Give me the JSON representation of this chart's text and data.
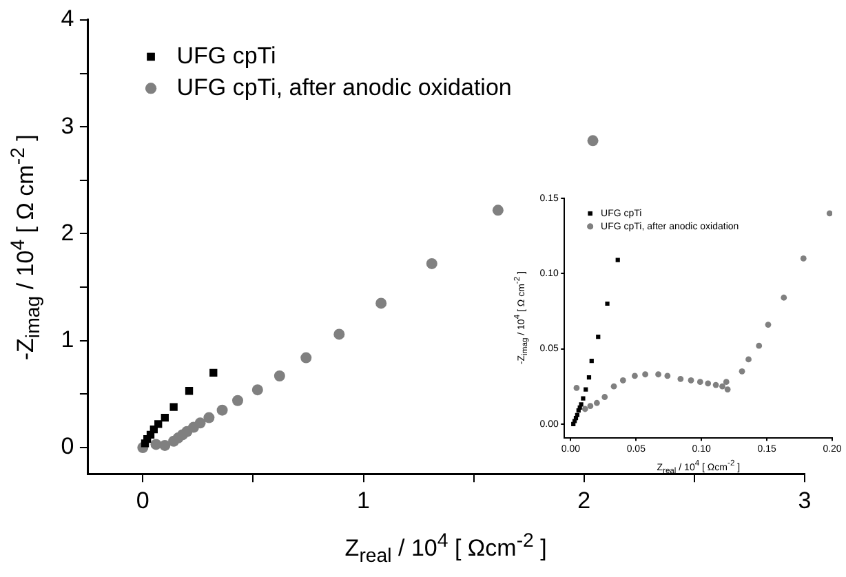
{
  "chart_data": [
    {
      "type": "scatter",
      "xlabel": "Z$_{real}$ / 10$^{4}$ [ Ωcm$^{-2}$ ]",
      "ylabel": "-Z$_{imag}$ / 10$^{4}$ [ Ω cm$^{-2}$ ]",
      "xlim": [
        -0.25,
        3
      ],
      "ylim": [
        -0.25,
        4
      ],
      "xticks": [
        0,
        {
          "value": 0.5,
          "label": null
        },
        1,
        {
          "value": 1.5,
          "label": null
        },
        2,
        {
          "value": 2.5,
          "label": null
        },
        3
      ],
      "yticks": [
        0,
        {
          "value": 0.5,
          "label": null
        },
        1,
        {
          "value": 1.5,
          "label": null
        },
        2,
        {
          "value": 2.5,
          "label": null
        },
        3,
        {
          "value": 3.5,
          "label": null
        },
        4
      ],
      "grid": false,
      "legend": "top left",
      "series": [
        {
          "name": "UFG cpTi",
          "color": "#000000",
          "marker": "square",
          "x": [
            0.32,
            0.21,
            0.14,
            0.1,
            0.07,
            0.05,
            0.035,
            0.02,
            0.01
          ],
          "values": [
            0.7,
            0.53,
            0.38,
            0.28,
            0.22,
            0.17,
            0.12,
            0.08,
            0.04
          ]
        },
        {
          "name": "UFG cpTi, after anodic oxidation",
          "color": "#808080",
          "marker": "circle",
          "x": [
            2.04,
            1.61,
            1.31,
            1.08,
            0.89,
            0.74,
            0.62,
            0.52,
            0.43,
            0.36,
            0.3,
            0.26,
            0.23,
            0.2,
            0.18,
            0.16,
            0.14,
            0.1,
            0.06,
            0.0
          ],
          "values": [
            2.87,
            2.22,
            1.72,
            1.35,
            1.06,
            0.84,
            0.67,
            0.54,
            0.44,
            0.35,
            0.28,
            0.23,
            0.19,
            0.15,
            0.12,
            0.09,
            0.06,
            0.02,
            0.03,
            0.0
          ]
        }
      ]
    },
    {
      "type": "scatter",
      "xlabel": "Z$_{real}$ / 10$^{4}$ [ Ωcm$^{-2}$ ]",
      "ylabel": "-Z$_{imag}$ / 10$^{4}$ [ Ω cm$^{-2}$ ]",
      "xlim": [
        -0.005,
        0.2
      ],
      "ylim": [
        -0.009,
        0.15
      ],
      "xticks": [
        {
          "value": 0,
          "label": "0.00"
        },
        0.05,
        {
          "value": 0.1,
          "label": "0.10"
        },
        0.15,
        {
          "value": 0.2,
          "label": "0.20"
        }
      ],
      "yticks": [
        {
          "value": 0,
          "label": "0.00"
        },
        0.05,
        {
          "value": 0.1,
          "label": "0.10"
        },
        0.15
      ],
      "grid": false,
      "legend": "top left",
      "series": [
        {
          "name": "UFG cpTi",
          "color": "#000000",
          "marker": "square",
          "x": [
            0.036,
            0.028,
            0.021,
            0.016,
            0.014,
            0.0115,
            0.0095,
            0.008,
            0.007,
            0.006,
            0.005,
            0.004,
            0.003,
            0.002
          ],
          "values": [
            0.109,
            0.08,
            0.058,
            0.042,
            0.031,
            0.023,
            0.017,
            0.013,
            0.011,
            0.009,
            0.006,
            0.004,
            0.002,
            0.0
          ]
        },
        {
          "name": "UFG cpTi, after anodic oxidation",
          "color": "#808080",
          "marker": "circle",
          "x": [
            0.0045,
            0.011,
            0.015,
            0.02,
            0.026,
            0.033,
            0.04,
            0.049,
            0.057,
            0.067,
            0.074,
            0.084,
            0.092,
            0.099,
            0.105,
            0.111,
            0.116,
            0.119,
            0.12,
            0.131,
            0.136,
            0.144,
            0.151,
            0.163,
            0.178,
            0.198
          ],
          "values": [
            0.024,
            0.01,
            0.012,
            0.014,
            0.018,
            0.025,
            0.029,
            0.032,
            0.033,
            0.033,
            0.032,
            0.03,
            0.029,
            0.028,
            0.027,
            0.026,
            0.025,
            0.028,
            0.023,
            0.035,
            0.043,
            0.052,
            0.066,
            0.084,
            0.11,
            0.14
          ]
        }
      ]
    }
  ]
}
